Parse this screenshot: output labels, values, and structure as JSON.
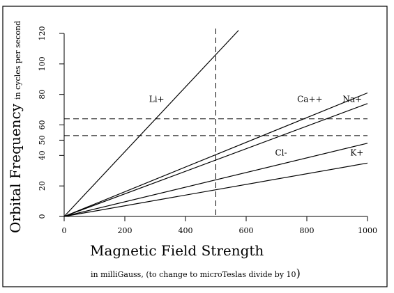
{
  "chart_data": {
    "type": "line",
    "xlabel": "Magnetic Field Strength",
    "xlabel_note": "in milliGauss, (to change to microTeslas divide by 10",
    "xlabel_note_close": ")",
    "ylabel": "Orbital Frequency",
    "ylabel_note": "in cycles per second",
    "xlim": [
      0,
      1000
    ],
    "ylim": [
      0,
      120
    ],
    "x_ticks": [
      0,
      200,
      400,
      600,
      800,
      1000
    ],
    "x_tick_labels": [
      "0",
      "200",
      "400",
      "600",
      "800",
      "1000"
    ],
    "y_ticks": [
      0,
      20,
      40,
      50,
      60,
      80,
      100,
      120
    ],
    "y_tick_labels": [
      "0",
      "20",
      "40",
      "50",
      "60",
      "80",
      "100",
      "120"
    ],
    "grid": false,
    "series": [
      {
        "name": "Li+",
        "x": [
          0,
          575
        ],
        "y": [
          0,
          122
        ]
      },
      {
        "name": "Ca++",
        "x": [
          0,
          1000
        ],
        "y": [
          0,
          81
        ]
      },
      {
        "name": "Na+",
        "x": [
          0,
          1000
        ],
        "y": [
          0,
          74
        ]
      },
      {
        "name": "Cl-",
        "x": [
          0,
          1000
        ],
        "y": [
          0,
          48
        ]
      },
      {
        "name": "K+",
        "x": [
          0,
          1000
        ],
        "y": [
          0,
          35
        ]
      }
    ],
    "series_label_positions": [
      {
        "name": "Li+",
        "x": 305,
        "y": 75
      },
      {
        "name": "Ca++",
        "x": 810,
        "y": 75
      },
      {
        "name": "Na+",
        "x": 950,
        "y": 75
      },
      {
        "name": "Cl-",
        "x": 715,
        "y": 40
      },
      {
        "name": "K+",
        "x": 965,
        "y": 40
      }
    ],
    "reference_lines": {
      "vertical_x": [
        500
      ],
      "horizontal_y": [
        64,
        53
      ]
    }
  }
}
